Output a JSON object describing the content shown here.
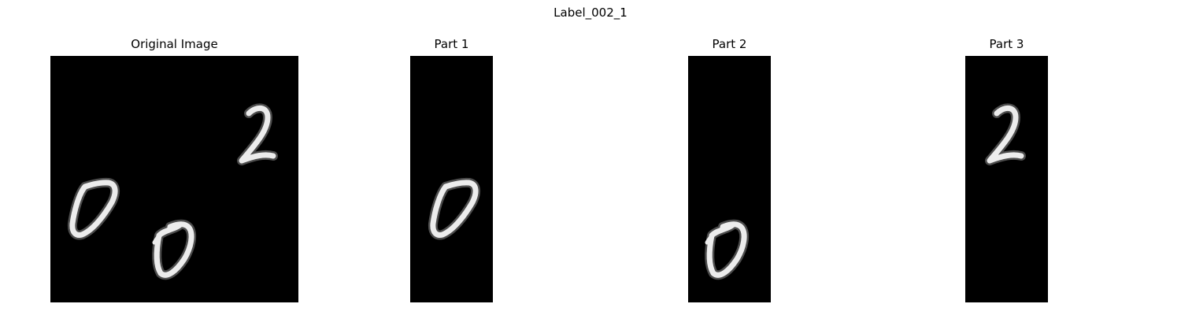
{
  "figure": {
    "title": "Label_002_1"
  },
  "panels": [
    {
      "title": "Original Image",
      "content": "three handwritten digits 0, 0, 2"
    },
    {
      "title": "Part 1",
      "content": "handwritten digit 0"
    },
    {
      "title": "Part 2",
      "content": "handwritten digit 0"
    },
    {
      "title": "Part 3",
      "content": "handwritten digit 2"
    }
  ],
  "colors": {
    "background": "#ffffff",
    "panel": "#000000",
    "digit": "#ececec"
  }
}
